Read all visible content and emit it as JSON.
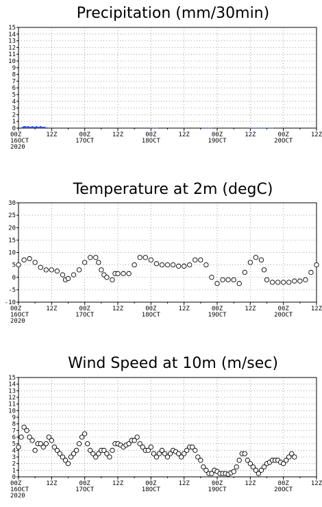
{
  "chart_data": [
    {
      "type": "bar",
      "title": "Precipitation (mm/30min)",
      "xlabel": "",
      "ylabel": "",
      "ylim": [
        0,
        15
      ],
      "yticks": [
        0,
        1,
        2,
        3,
        4,
        5,
        6,
        7,
        8,
        9,
        10,
        11,
        12,
        13,
        14,
        15
      ],
      "grid": true,
      "x_hours_range": [
        0,
        108
      ],
      "x_ticks": [
        {
          "line1": "00Z",
          "line2": "16OCT",
          "line3": "2020"
        },
        {
          "line1": "12Z",
          "line2": "",
          "line3": ""
        },
        {
          "line1": "00Z",
          "line2": "17OCT",
          "line3": ""
        },
        {
          "line1": "12Z",
          "line2": "",
          "line3": ""
        },
        {
          "line1": "00Z",
          "line2": "18OCT",
          "line3": ""
        },
        {
          "line1": "12Z",
          "line2": "",
          "line3": ""
        },
        {
          "line1": "00Z",
          "line2": "19OCT",
          "line3": ""
        },
        {
          "line1": "12Z",
          "line2": "",
          "line3": ""
        },
        {
          "line1": "00Z",
          "line2": "20OCT",
          "line3": ""
        },
        {
          "line1": "12Z",
          "line2": "",
          "line3": ""
        }
      ],
      "bar_color": "#3050d8",
      "values": [
        [
          1,
          0.1
        ],
        [
          1.5,
          0.2
        ],
        [
          2,
          0.3
        ],
        [
          2.5,
          0.3
        ],
        [
          3,
          0.2
        ],
        [
          3.5,
          0.3
        ],
        [
          4,
          0.2
        ],
        [
          4.5,
          0.2
        ],
        [
          5,
          0.3
        ],
        [
          5.5,
          0.2
        ],
        [
          6,
          0.2
        ],
        [
          6.5,
          0.3
        ],
        [
          7,
          0.2
        ],
        [
          7.5,
          0.2
        ],
        [
          8,
          0.3
        ],
        [
          8.5,
          0.2
        ],
        [
          9,
          0.2
        ],
        [
          9.5,
          0.2
        ],
        [
          10,
          0.1
        ],
        [
          10.5,
          0.1
        ],
        [
          48,
          0.05
        ],
        [
          49,
          0.05
        ],
        [
          50,
          0.05
        ],
        [
          67,
          0.05
        ],
        [
          68,
          0.05
        ],
        [
          69,
          0.05
        ],
        [
          70,
          0.05
        ],
        [
          84,
          0.05
        ],
        [
          85,
          0.05
        ],
        [
          86,
          0.05
        ],
        [
          87,
          0.05
        ],
        [
          88,
          0.05
        ],
        [
          89,
          0.05
        ],
        [
          90,
          0.05
        ],
        [
          91,
          0.05
        ],
        [
          92,
          0.05
        ]
      ]
    },
    {
      "type": "scatter",
      "title": "Temperature at 2m (degC)",
      "xlabel": "",
      "ylabel": "",
      "ylim": [
        -10,
        30
      ],
      "yticks": [
        -10,
        -5,
        0,
        5,
        10,
        15,
        20,
        25,
        30
      ],
      "grid": true,
      "x_hours_range": [
        0,
        108
      ],
      "x_ticks": [
        {
          "line1": "00Z",
          "line2": "16OCT",
          "line3": "2020"
        },
        {
          "line1": "12Z",
          "line2": "",
          "line3": ""
        },
        {
          "line1": "00Z",
          "line2": "17OCT",
          "line3": ""
        },
        {
          "line1": "12Z",
          "line2": "",
          "line3": ""
        },
        {
          "line1": "00Z",
          "line2": "18OCT",
          "line3": ""
        },
        {
          "line1": "12Z",
          "line2": "",
          "line3": ""
        },
        {
          "line1": "00Z",
          "line2": "19OCT",
          "line3": ""
        },
        {
          "line1": "12Z",
          "line2": "",
          "line3": ""
        },
        {
          "line1": "00Z",
          "line2": "20OCT",
          "line3": ""
        },
        {
          "line1": "12Z",
          "line2": "",
          "line3": ""
        }
      ],
      "points": [
        [
          0,
          5
        ],
        [
          2,
          7
        ],
        [
          4,
          7.5
        ],
        [
          6,
          6
        ],
        [
          8,
          4
        ],
        [
          10,
          3
        ],
        [
          12,
          3
        ],
        [
          14,
          2.5
        ],
        [
          16,
          1
        ],
        [
          17,
          -1
        ],
        [
          18,
          -0.5
        ],
        [
          20,
          1
        ],
        [
          22,
          3
        ],
        [
          24,
          6
        ],
        [
          26,
          8
        ],
        [
          28,
          8
        ],
        [
          29,
          6
        ],
        [
          30,
          3
        ],
        [
          31,
          1
        ],
        [
          32,
          0
        ],
        [
          34,
          -1
        ],
        [
          35,
          1.5
        ],
        [
          36,
          1.5
        ],
        [
          38,
          1.5
        ],
        [
          40,
          1.5
        ],
        [
          42,
          5
        ],
        [
          44,
          8
        ],
        [
          46,
          8
        ],
        [
          48,
          7
        ],
        [
          50,
          5.5
        ],
        [
          52,
          5
        ],
        [
          54,
          5
        ],
        [
          56,
          5
        ],
        [
          58,
          4.5
        ],
        [
          60,
          4.5
        ],
        [
          62,
          5
        ],
        [
          64,
          7
        ],
        [
          66,
          7
        ],
        [
          68,
          5
        ],
        [
          70,
          0
        ],
        [
          72,
          -2.5
        ],
        [
          74,
          -1
        ],
        [
          76,
          -1
        ],
        [
          78,
          -1
        ],
        [
          80,
          -2.5
        ],
        [
          82,
          2
        ],
        [
          84,
          6
        ],
        [
          86,
          8
        ],
        [
          88,
          7
        ],
        [
          89,
          3
        ],
        [
          90,
          -1
        ],
        [
          92,
          -2
        ],
        [
          94,
          -2
        ],
        [
          96,
          -2
        ],
        [
          98,
          -2
        ],
        [
          100,
          -1.5
        ],
        [
          102,
          -1.5
        ],
        [
          104,
          -1
        ],
        [
          106,
          2
        ],
        [
          108,
          5
        ]
      ]
    },
    {
      "type": "scatter",
      "title": "Wind Speed at 10m (m/sec)",
      "xlabel": "",
      "ylabel": "",
      "ylim": [
        0,
        15
      ],
      "yticks": [
        0,
        1,
        2,
        3,
        4,
        5,
        6,
        7,
        8,
        9,
        10,
        11,
        12,
        13,
        14,
        15
      ],
      "grid": true,
      "x_hours_range": [
        0,
        108
      ],
      "x_ticks": [
        {
          "line1": "00Z",
          "line2": "16OCT",
          "line3": "2020"
        },
        {
          "line1": "12Z",
          "line2": "",
          "line3": ""
        },
        {
          "line1": "00Z",
          "line2": "17OCT",
          "line3": ""
        },
        {
          "line1": "12Z",
          "line2": "",
          "line3": ""
        },
        {
          "line1": "00Z",
          "line2": "18OCT",
          "line3": ""
        },
        {
          "line1": "12Z",
          "line2": "",
          "line3": ""
        },
        {
          "line1": "00Z",
          "line2": "19OCT",
          "line3": ""
        },
        {
          "line1": "12Z",
          "line2": "",
          "line3": ""
        },
        {
          "line1": "00Z",
          "line2": "20OCT",
          "line3": ""
        },
        {
          "line1": "12Z",
          "line2": "",
          "line3": ""
        }
      ],
      "points": [
        [
          0,
          4.5
        ],
        [
          1,
          6
        ],
        [
          2,
          7.5
        ],
        [
          3,
          7
        ],
        [
          4,
          6
        ],
        [
          5,
          5.5
        ],
        [
          6,
          4
        ],
        [
          7,
          5
        ],
        [
          8,
          5
        ],
        [
          9,
          4.5
        ],
        [
          10,
          5
        ],
        [
          11,
          6
        ],
        [
          12,
          5.5
        ],
        [
          13,
          4.5
        ],
        [
          14,
          4
        ],
        [
          15,
          3.5
        ],
        [
          16,
          3
        ],
        [
          17,
          2.5
        ],
        [
          18,
          2
        ],
        [
          19,
          3
        ],
        [
          20,
          3.5
        ],
        [
          21,
          4
        ],
        [
          22,
          5
        ],
        [
          23,
          6
        ],
        [
          24,
          6.5
        ],
        [
          25,
          5
        ],
        [
          26,
          4
        ],
        [
          27,
          3.5
        ],
        [
          28,
          3
        ],
        [
          29,
          3.5
        ],
        [
          30,
          4
        ],
        [
          31,
          4
        ],
        [
          32,
          3.5
        ],
        [
          33,
          3
        ],
        [
          34,
          4
        ],
        [
          35,
          5
        ],
        [
          36,
          5
        ],
        [
          37,
          4.8
        ],
        [
          38,
          4.5
        ],
        [
          39,
          4.8
        ],
        [
          40,
          5
        ],
        [
          41,
          5.5
        ],
        [
          42,
          5.5
        ],
        [
          43,
          6
        ],
        [
          44,
          5
        ],
        [
          45,
          4.5
        ],
        [
          46,
          4
        ],
        [
          47,
          4
        ],
        [
          48,
          4.5
        ],
        [
          49,
          3.5
        ],
        [
          50,
          3
        ],
        [
          51,
          3.5
        ],
        [
          52,
          4
        ],
        [
          53,
          3.5
        ],
        [
          54,
          3
        ],
        [
          55,
          3.5
        ],
        [
          56,
          4
        ],
        [
          57,
          3.8
        ],
        [
          58,
          3.5
        ],
        [
          59,
          3
        ],
        [
          60,
          3.5
        ],
        [
          61,
          4
        ],
        [
          62,
          4.5
        ],
        [
          63,
          4.5
        ],
        [
          64,
          4
        ],
        [
          65,
          3
        ],
        [
          66,
          2.5
        ],
        [
          67,
          1.5
        ],
        [
          68,
          1
        ],
        [
          69,
          0.5
        ],
        [
          70,
          0.5
        ],
        [
          71,
          1
        ],
        [
          72,
          0.8
        ],
        [
          73,
          0.5
        ],
        [
          74,
          0.5
        ],
        [
          75,
          0.5
        ],
        [
          76,
          0.4
        ],
        [
          77,
          0.6
        ],
        [
          78,
          0.8
        ],
        [
          79,
          1.5
        ],
        [
          80,
          2.5
        ],
        [
          81,
          3.5
        ],
        [
          82,
          3.5
        ],
        [
          83,
          2.5
        ],
        [
          84,
          2
        ],
        [
          85,
          1.5
        ],
        [
          86,
          1
        ],
        [
          87,
          0.5
        ],
        [
          88,
          1
        ],
        [
          89,
          1.5
        ],
        [
          90,
          2
        ],
        [
          91,
          2.2
        ],
        [
          92,
          2.5
        ],
        [
          93,
          2.5
        ],
        [
          94,
          2.5
        ],
        [
          95,
          2.2
        ],
        [
          96,
          2
        ],
        [
          97,
          2.5
        ],
        [
          98,
          3
        ],
        [
          99,
          3.5
        ],
        [
          100,
          3
        ]
      ]
    }
  ]
}
